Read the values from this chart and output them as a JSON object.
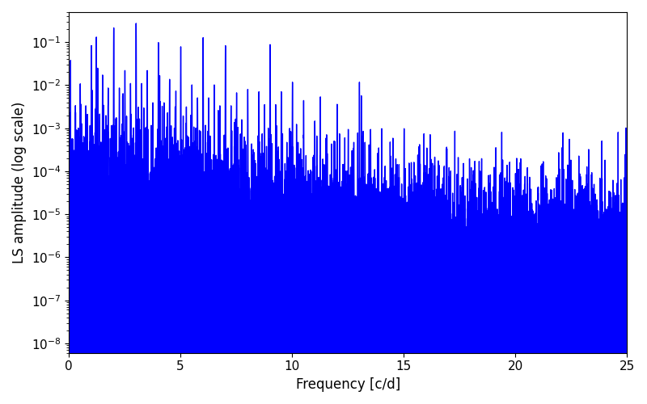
{
  "title": "",
  "xlabel": "Frequency [c/d]",
  "ylabel": "LS amplitude (log scale)",
  "xlim": [
    0,
    25
  ],
  "ylim": [
    6e-09,
    0.5
  ],
  "freq_min": 0.0,
  "freq_max": 25.0,
  "n_points": 8000,
  "line_color": "#0000ff",
  "background_color": "#ffffff",
  "figwidth": 8.0,
  "figheight": 5.0,
  "seed": 12345
}
